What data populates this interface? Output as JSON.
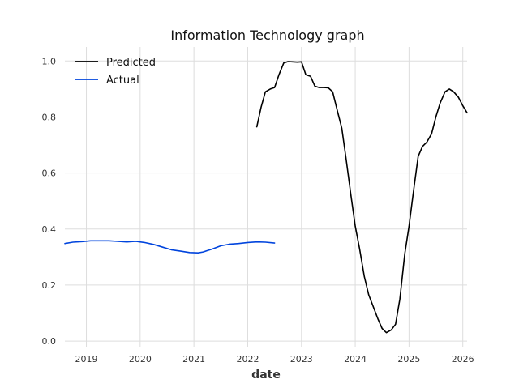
{
  "chart_data": {
    "type": "line",
    "title": "Information Technology graph",
    "xlabel": "date",
    "ylabel": "",
    "xlim": [
      2018.6,
      2026.08
    ],
    "ylim": [
      -0.02,
      1.05
    ],
    "xticks": [
      2019,
      2020,
      2021,
      2022,
      2023,
      2024,
      2025,
      2026
    ],
    "xtick_labels": [
      "2019",
      "2020",
      "2021",
      "2022",
      "2023",
      "2024",
      "2025",
      "2026"
    ],
    "yticks": [
      0.0,
      0.2,
      0.4,
      0.6,
      0.8,
      1.0
    ],
    "ytick_labels": [
      "0.0",
      "0.2",
      "0.4",
      "0.6",
      "0.8",
      "1.0"
    ],
    "grid": true,
    "legend_position": "top-left",
    "series": [
      {
        "name": "Predicted",
        "color": "#000000",
        "x": [
          2022.17,
          2022.25,
          2022.33,
          2022.42,
          2022.5,
          2022.58,
          2022.67,
          2022.75,
          2022.83,
          2022.92,
          2023.0,
          2023.08,
          2023.17,
          2023.25,
          2023.33,
          2023.42,
          2023.5,
          2023.58,
          2023.67,
          2023.75,
          2023.83,
          2023.92,
          2024.0,
          2024.08,
          2024.17,
          2024.25,
          2024.33,
          2024.42,
          2024.5,
          2024.58,
          2024.67,
          2024.75,
          2024.83,
          2024.92,
          2025.0,
          2025.08,
          2025.17,
          2025.25,
          2025.33,
          2025.42,
          2025.5,
          2025.58,
          2025.67,
          2025.75,
          2025.83,
          2025.92,
          2026.0,
          2026.08
        ],
        "y": [
          0.765,
          0.835,
          0.89,
          0.9,
          0.905,
          0.95,
          0.993,
          0.998,
          0.997,
          0.996,
          0.997,
          0.951,
          0.945,
          0.91,
          0.905,
          0.905,
          0.904,
          0.89,
          0.82,
          0.76,
          0.65,
          0.52,
          0.41,
          0.33,
          0.23,
          0.165,
          0.125,
          0.08,
          0.045,
          0.03,
          0.04,
          0.06,
          0.15,
          0.31,
          0.41,
          0.53,
          0.66,
          0.695,
          0.71,
          0.74,
          0.8,
          0.85,
          0.89,
          0.9,
          0.89,
          0.87,
          0.84,
          0.815
        ]
      },
      {
        "name": "Actual",
        "color": "#0044dd",
        "x": [
          2018.6,
          2018.75,
          2018.92,
          2019.08,
          2019.25,
          2019.42,
          2019.58,
          2019.75,
          2019.92,
          2020.08,
          2020.25,
          2020.42,
          2020.58,
          2020.75,
          2020.92,
          2021.08,
          2021.17,
          2021.33,
          2021.5,
          2021.67,
          2021.83,
          2022.0,
          2022.17,
          2022.33,
          2022.5
        ],
        "y": [
          0.348,
          0.353,
          0.355,
          0.358,
          0.358,
          0.358,
          0.356,
          0.354,
          0.356,
          0.352,
          0.345,
          0.335,
          0.326,
          0.321,
          0.316,
          0.315,
          0.318,
          0.328,
          0.34,
          0.346,
          0.348,
          0.352,
          0.354,
          0.353,
          0.35
        ]
      }
    ]
  }
}
